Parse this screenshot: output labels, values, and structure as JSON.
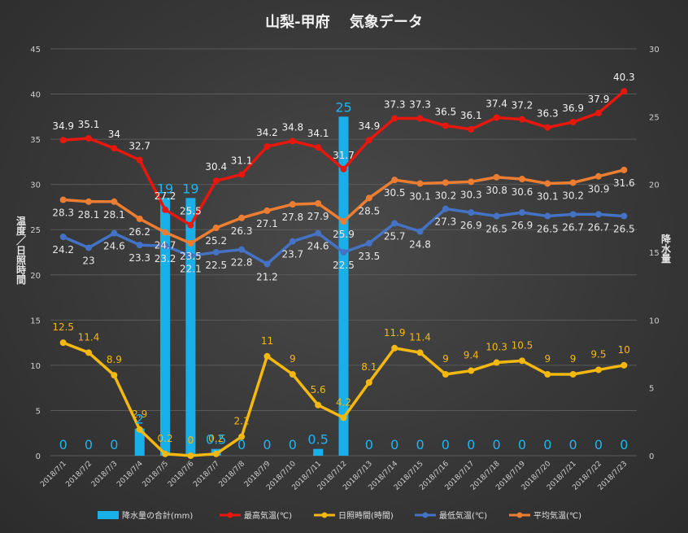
{
  "chart_data": {
    "type": "bar+line",
    "title": "山梨-甲府　 気象データ",
    "left_axis": {
      "label": "温度／日照時間",
      "min": 0,
      "max": 45,
      "step": 5
    },
    "right_axis": {
      "label": "降水量",
      "min": 0,
      "max": 30,
      "step": 5
    },
    "categories": [
      "2018/7/1",
      "2018/7/2",
      "2018/7/3",
      "2018/7/4",
      "2018/7/5",
      "2018/7/6",
      "2018/7/7",
      "2018/7/8",
      "2018/7/9",
      "2018/7/10",
      "2018/7/11",
      "2018/7/12",
      "2018/7/13",
      "2018/7/14",
      "2018/7/15",
      "2018/7/16",
      "2018/7/17",
      "2018/7/18",
      "2018/7/19",
      "2018/7/20",
      "2018/7/21",
      "2018/7/22",
      "2018/7/23"
    ],
    "bar_series": {
      "name": "降水量の合計(mm)",
      "axis": "right",
      "color": "#19b0ea",
      "values": [
        0,
        0,
        0,
        2,
        19,
        19,
        0.5,
        0,
        0,
        0,
        0.5,
        25,
        0,
        0,
        0,
        0,
        0,
        0,
        0,
        0,
        0,
        0,
        0
      ],
      "labels": [
        "0",
        "0",
        "0",
        "2",
        "19",
        "19",
        "0.5",
        "0",
        "0",
        "0",
        "0.5",
        "25",
        "0",
        "0",
        "0",
        "0",
        "0",
        "0",
        "0",
        "0",
        "0",
        "0",
        "0"
      ]
    },
    "series": [
      {
        "name": "最高気温(℃)",
        "axis": "left",
        "color": "#e8170d",
        "values": [
          34.9,
          35.1,
          34,
          32.7,
          27.2,
          25.5,
          30.4,
          31.1,
          34.2,
          34.8,
          34.1,
          31.7,
          34.9,
          37.3,
          37.3,
          36.5,
          36.1,
          37.4,
          37.2,
          36.3,
          36.9,
          37.9,
          40.3
        ],
        "labels": [
          "34.9",
          "35.1",
          "34",
          "32.7",
          "27.2",
          "25.5",
          "30.4",
          "31.1",
          "34.2",
          "34.8",
          "34.1",
          "31.7",
          "34.9",
          "37.3",
          "37.3",
          "36.5",
          "36.1",
          "37.4",
          "37.2",
          "36.3",
          "36.9",
          "37.9",
          "40.3"
        ]
      },
      {
        "name": "日照時間(時間)",
        "axis": "left",
        "color": "#f5b80e",
        "values": [
          12.5,
          11.4,
          8.9,
          2.9,
          0.2,
          0,
          0.2,
          2.1,
          11,
          9,
          5.6,
          4.2,
          8.1,
          11.9,
          11.4,
          9,
          9.4,
          10.3,
          10.5,
          9,
          9,
          9.5,
          10
        ],
        "labels": [
          "12.5",
          "11.4",
          "8.9",
          "2.9",
          "0.2",
          "0",
          "0.2",
          "2.1",
          "11",
          "9",
          "5.6",
          "4.2",
          "8.1",
          "11.9",
          "11.4",
          "9",
          "9.4",
          "10.3",
          "10.5",
          "9",
          "9",
          "9.5",
          "10"
        ]
      },
      {
        "name": "最低気温(℃)",
        "axis": "left",
        "color": "#4472c4",
        "values": [
          24.2,
          23,
          24.6,
          23.3,
          23.2,
          22.1,
          22.5,
          22.8,
          21.2,
          23.7,
          24.6,
          22.5,
          23.5,
          25.7,
          24.8,
          27.3,
          26.9,
          26.5,
          26.9,
          26.5,
          26.7,
          26.7,
          26.5
        ],
        "labels": [
          "24.2",
          "23",
          "24.6",
          "23.3",
          "23.2",
          "22.1",
          "22.5",
          "22.8",
          "21.2",
          "23.7",
          "24.6",
          "22.5",
          "23.5",
          "25.7",
          "24.8",
          "27.3",
          "26.9",
          "26.5",
          "26.9",
          "26.5",
          "26.7",
          "26.7",
          "26.5"
        ]
      },
      {
        "name": "平均気温(℃)",
        "axis": "left",
        "color": "#ed7d31",
        "values": [
          28.3,
          28.1,
          28.1,
          26.2,
          24.7,
          23.5,
          25.2,
          26.3,
          27.1,
          27.8,
          27.9,
          25.9,
          28.5,
          30.5,
          30.1,
          30.2,
          30.3,
          30.8,
          30.6,
          30.1,
          30.2,
          30.9,
          31.6
        ],
        "labels": [
          "28.3",
          "28.1",
          "28.1",
          "26.2",
          "24.7",
          "23.5",
          "25.2",
          "26.3",
          "27.1",
          "27.8",
          "27.9",
          "25.9",
          "28.5",
          "30.5",
          "30.1",
          "30.2",
          "30.3",
          "30.8",
          "30.6",
          "30.1",
          "30.2",
          "30.9",
          "31.6"
        ]
      }
    ],
    "left_ticks": [
      "0",
      "5",
      "10",
      "15",
      "20",
      "25",
      "30",
      "35",
      "40",
      "45"
    ],
    "right_ticks": [
      "0",
      "5",
      "10",
      "15",
      "20",
      "25",
      "30"
    ],
    "legend_position": "bottom",
    "gridlines": true
  }
}
